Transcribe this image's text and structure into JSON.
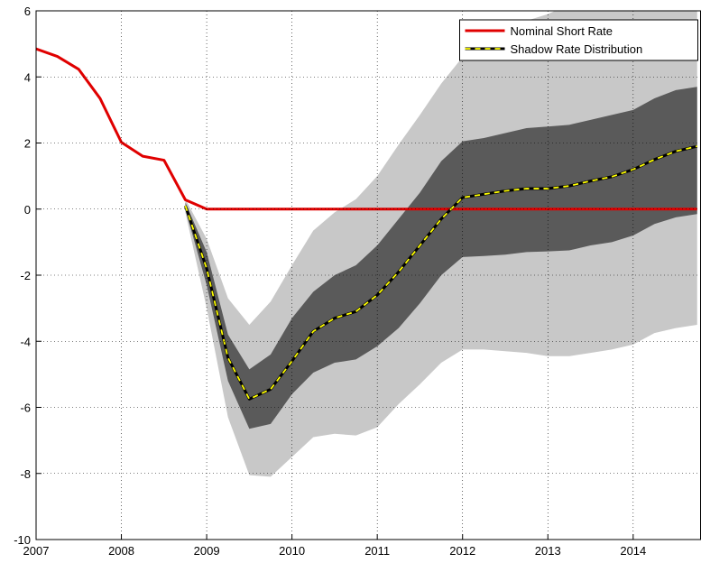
{
  "chart_data": {
    "type": "line",
    "x": [
      2007,
      2007.25,
      2007.5,
      2007.75,
      2008,
      2008.25,
      2008.5,
      2008.75,
      2009,
      2009.25,
      2009.5,
      2009.75,
      2010,
      2010.25,
      2010.5,
      2010.75,
      2011,
      2011.25,
      2011.5,
      2011.75,
      2012,
      2012.25,
      2012.5,
      2012.75,
      2013,
      2013.25,
      2013.5,
      2013.75,
      2014,
      2014.25,
      2014.5,
      2014.75
    ],
    "bands": [
      {
        "color": "#c8c8c8",
        "upper": [
          null,
          null,
          null,
          null,
          null,
          null,
          null,
          0.3,
          -0.9,
          -2.7,
          -3.5,
          -2.8,
          -1.7,
          -0.65,
          -0.1,
          0.3,
          1.0,
          1.95,
          2.85,
          3.8,
          4.6,
          5.0,
          5.4,
          5.7,
          5.9,
          6.2,
          6.4,
          6.6,
          6.8,
          7.0,
          7.2,
          7.4
        ],
        "lower": [
          null,
          null,
          null,
          null,
          null,
          null,
          null,
          -0.1,
          -3.0,
          -6.3,
          -8.05,
          -8.1,
          -7.5,
          -6.9,
          -6.8,
          -6.85,
          -6.6,
          -5.9,
          -5.3,
          -4.65,
          -4.25,
          -4.25,
          -4.3,
          -4.35,
          -4.45,
          -4.45,
          -4.35,
          -4.25,
          -4.1,
          -3.75,
          -3.6,
          -3.5
        ]
      },
      {
        "color": "#5a5a5a",
        "upper": [
          null,
          null,
          null,
          null,
          null,
          null,
          null,
          0.2,
          -1.3,
          -3.8,
          -4.85,
          -4.4,
          -3.3,
          -2.5,
          -2.0,
          -1.7,
          -1.1,
          -0.3,
          0.5,
          1.45,
          2.05,
          2.15,
          2.3,
          2.45,
          2.5,
          2.55,
          2.7,
          2.85,
          3.0,
          3.35,
          3.6,
          3.7
        ],
        "lower": [
          null,
          null,
          null,
          null,
          null,
          null,
          null,
          0.0,
          -2.3,
          -5.2,
          -6.65,
          -6.5,
          -5.6,
          -4.95,
          -4.65,
          -4.55,
          -4.15,
          -3.6,
          -2.85,
          -2.0,
          -1.45,
          -1.42,
          -1.38,
          -1.3,
          -1.28,
          -1.25,
          -1.1,
          -1.0,
          -0.8,
          -0.45,
          -0.25,
          -0.15
        ]
      }
    ],
    "series": [
      {
        "name": "Nominal Short Rate",
        "color": "#e00000",
        "values": [
          4.85,
          4.62,
          4.23,
          3.35,
          2.02,
          1.6,
          1.48,
          0.28,
          0,
          0,
          0,
          0,
          0,
          0,
          0,
          0,
          0,
          0,
          0,
          0,
          0,
          0,
          0,
          0,
          0,
          0,
          0,
          0,
          0,
          0,
          0,
          0
        ]
      },
      {
        "name": "Shadow Rate Distribution",
        "color": "#000000",
        "dash_color": "#ffff00",
        "values": [
          null,
          null,
          null,
          null,
          null,
          null,
          null,
          0.1,
          -1.8,
          -4.5,
          -5.75,
          -5.45,
          -4.6,
          -3.7,
          -3.3,
          -3.1,
          -2.6,
          -1.9,
          -1.1,
          -0.3,
          0.35,
          0.45,
          0.55,
          0.62,
          0.62,
          0.7,
          0.85,
          0.98,
          1.2,
          1.5,
          1.75,
          1.9
        ]
      }
    ],
    "xlim": [
      2007,
      2014.79
    ],
    "ylim": [
      -10,
      6
    ],
    "xticks": [
      2007,
      2008,
      2009,
      2010,
      2011,
      2012,
      2013,
      2014
    ],
    "yticks": [
      -10,
      -8,
      -6,
      -4,
      -2,
      0,
      2,
      4,
      6
    ],
    "grid": true,
    "legend": "top-right"
  }
}
